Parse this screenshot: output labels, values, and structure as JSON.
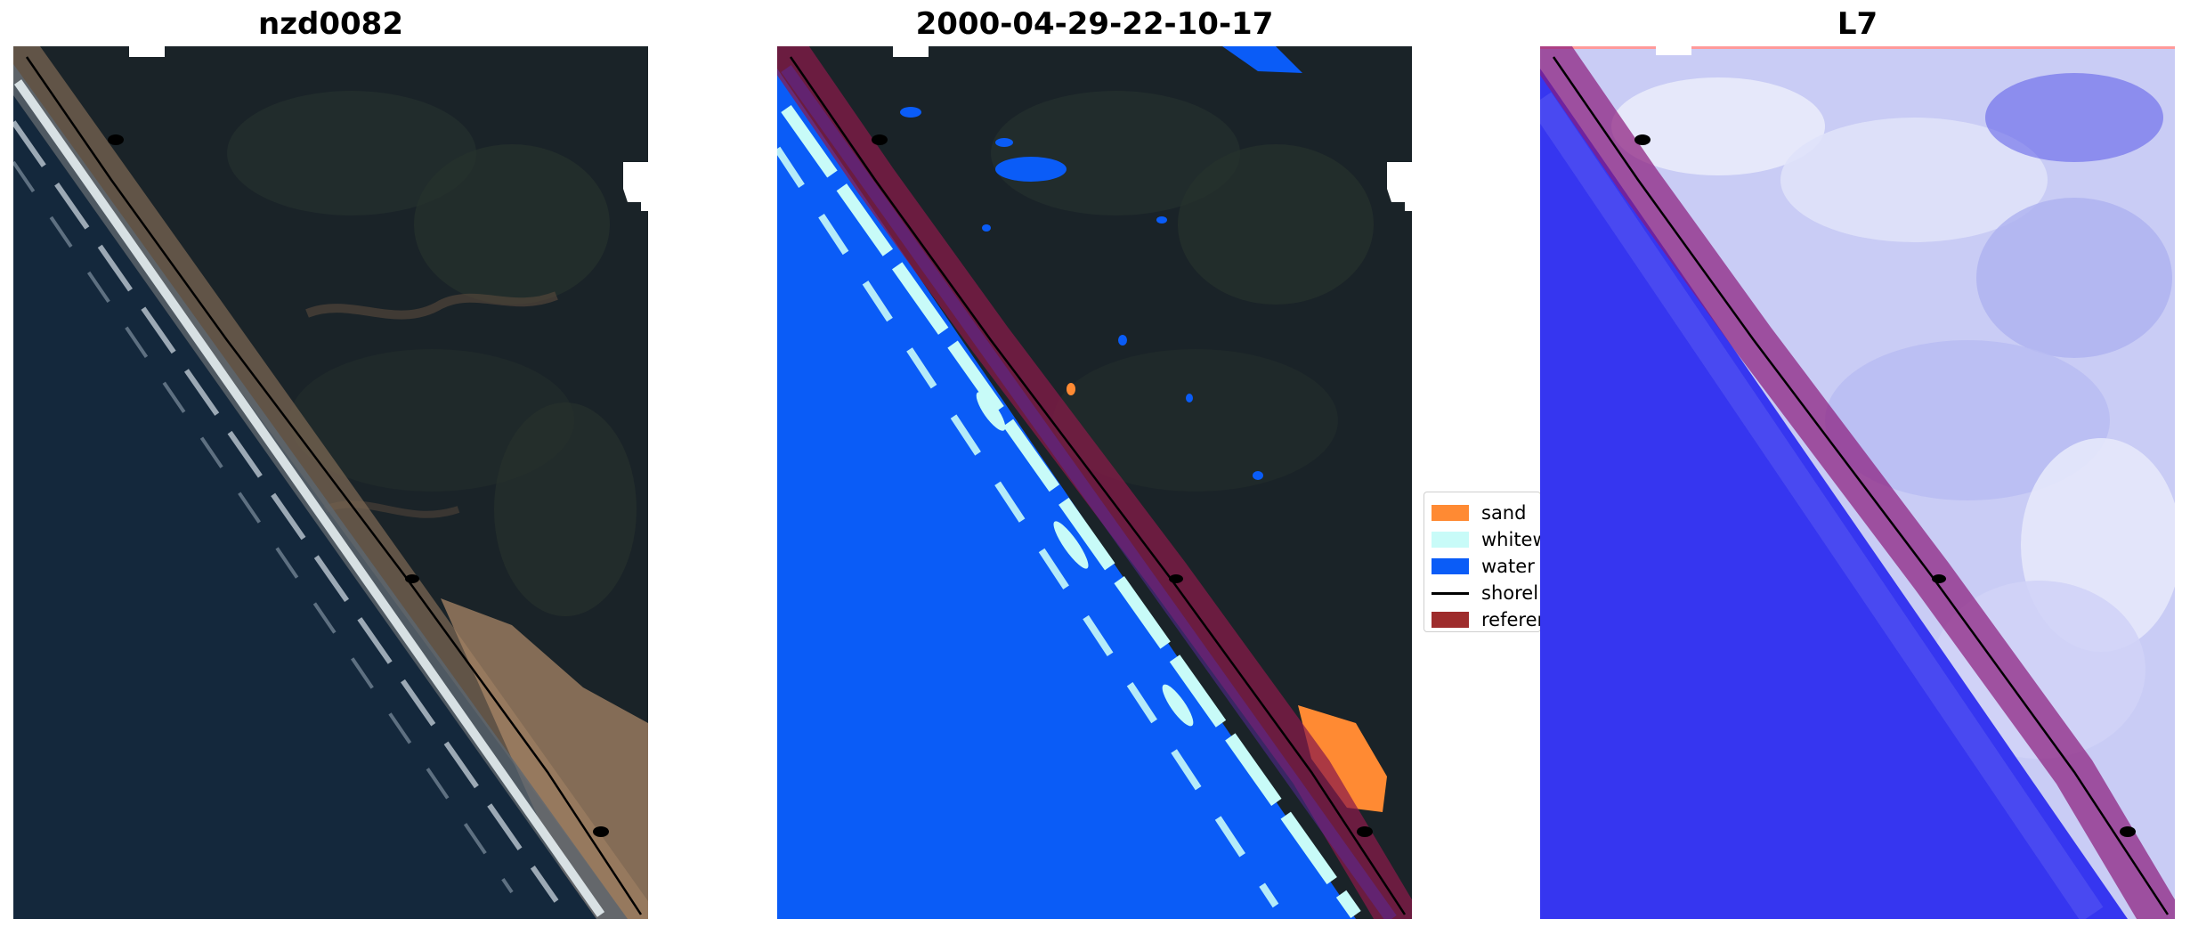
{
  "panels": [
    {
      "title": "nzd0082"
    },
    {
      "title": "2000-04-29-22-10-17"
    },
    {
      "title": "L7"
    }
  ],
  "legend": {
    "items": [
      {
        "label": "sand",
        "color": "#ff8a33",
        "kind": "patch"
      },
      {
        "label": "whitewater",
        "color": "#c8fbf8",
        "kind": "patch"
      },
      {
        "label": "water",
        "color": "#0a5cf7",
        "kind": "patch"
      },
      {
        "label": "shoreline",
        "color": "#000000",
        "kind": "line"
      },
      {
        "label": "reference",
        "color": "#9e2c2c",
        "kind": "patch"
      }
    ]
  },
  "colors": {
    "land_dark": "#1a2328",
    "ocean_dark": "#14283c",
    "sand_beach": "#b08a68",
    "surf_white": "#e6eef2",
    "class_water": "#0a5cf7",
    "class_whitewater": "#c8fbf8",
    "class_sand": "#ff8a33",
    "buffer_overlay": "#8a1a4a",
    "l7_water": "#3636f0",
    "l7_land": "#c9ccf5"
  }
}
